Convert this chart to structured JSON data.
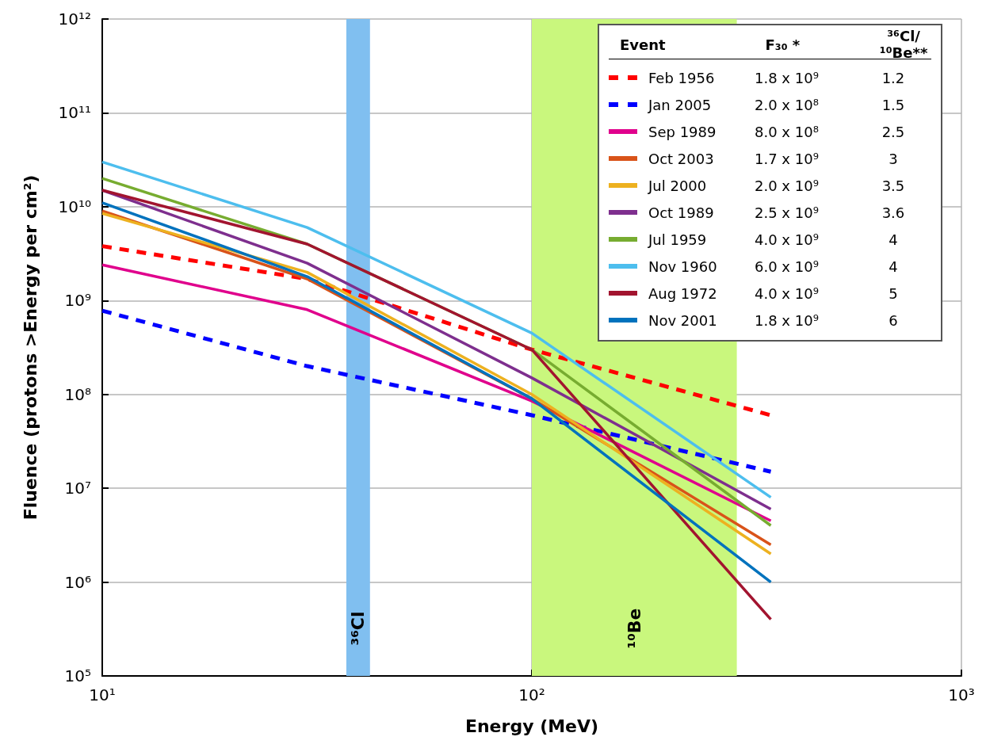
{
  "chart_data": {
    "type": "line",
    "xlabel": "Energy (MeV)",
    "ylabel": "Fluence (protons >Energy per cm²)",
    "log": "xy",
    "grid": true,
    "legend": "top right",
    "marker": "none",
    "xlim": [
      10,
      1000
    ],
    "xticks": [
      {
        "value": 10,
        "label": "10¹"
      },
      {
        "value": 100,
        "label": "10²"
      },
      {
        "value": 1000,
        "label": "10³"
      }
    ],
    "ylim": [
      100000,
      1000000000000
    ],
    "yticks": [
      {
        "value": 100000,
        "label": "10⁵"
      },
      {
        "value": 1000000,
        "label": "10⁶"
      },
      {
        "value": 10000000,
        "label": "10⁷"
      },
      {
        "value": 100000000,
        "label": "10⁸"
      },
      {
        "value": 1000000000,
        "label": "10⁹"
      },
      {
        "value": 10000000000,
        "label": "10¹⁰"
      },
      {
        "value": 100000000000,
        "label": "10¹¹"
      },
      {
        "value": 1000000000000,
        "label": "10¹²"
      }
    ],
    "x": [
      10,
      30,
      100,
      360
    ],
    "series": [
      {
        "name": "Feb 1956",
        "color": "#ff0000",
        "line_style": "dashed",
        "values": [
          3800000000,
          1700000000,
          300000000,
          60000000
        ]
      },
      {
        "name": "Jan 2005",
        "color": "#0000ff",
        "line_style": "dashed",
        "values": [
          780000000,
          200000000,
          60000000,
          15000000
        ]
      },
      {
        "name": "Sep 1989",
        "color": "#e0008c",
        "line_style": "solid",
        "values": [
          2400000000,
          800000000,
          85000000,
          4500000
        ]
      },
      {
        "name": "Oct 2003",
        "color": "#d95319",
        "line_style": "solid",
        "values": [
          9000000000,
          1700000000,
          90000000,
          2500000
        ]
      },
      {
        "name": "Jul 2000",
        "color": "#edb120",
        "line_style": "solid",
        "values": [
          8500000000,
          2000000000,
          100000000,
          2000000
        ]
      },
      {
        "name": "Oct 1989",
        "color": "#7e2f8e",
        "line_style": "solid",
        "values": [
          15000000000,
          2500000000,
          150000000,
          6000000
        ]
      },
      {
        "name": "Jul 1959",
        "color": "#77ac30",
        "line_style": "solid",
        "values": [
          20000000000,
          4000000000,
          300000000,
          4000000
        ]
      },
      {
        "name": "Nov 1960",
        "color": "#4dbeee",
        "line_style": "solid",
        "values": [
          30000000000,
          6000000000,
          450000000,
          8000000
        ]
      },
      {
        "name": "Aug 1972",
        "color": "#a2142f",
        "line_style": "solid",
        "values": [
          15000000000,
          4000000000,
          300000000,
          400000
        ]
      },
      {
        "name": "Nov 2001",
        "color": "#0072bd",
        "line_style": "solid",
        "values": [
          11000000000,
          1800000000,
          90000000,
          1000000
        ]
      }
    ],
    "bands": [
      {
        "axis": "x",
        "from": 37,
        "to": 42,
        "label": "³⁶Cl",
        "color": "#80bff0"
      },
      {
        "axis": "x",
        "from": 100,
        "to": 300,
        "label": "¹⁰Be",
        "color": "#c9f77d"
      }
    ],
    "annotations": [
      "Event",
      "F₃₀ *",
      "³⁶Cl/¹⁰Be**",
      "1.8 x 10⁹",
      "1.2",
      "2.0 x 10⁸",
      "1.5",
      "8.0 x 10⁸",
      "2.5",
      "1.7 x 10⁹",
      "3",
      "2.0 x 10⁹",
      "3.5",
      "2.5 x 10⁹",
      "3.6",
      "4.0 x 10⁹",
      "4",
      "6.0 x 10⁹",
      "4",
      "4.0 x 10⁹",
      "5",
      "1.8 x 10⁹",
      "6"
    ]
  }
}
